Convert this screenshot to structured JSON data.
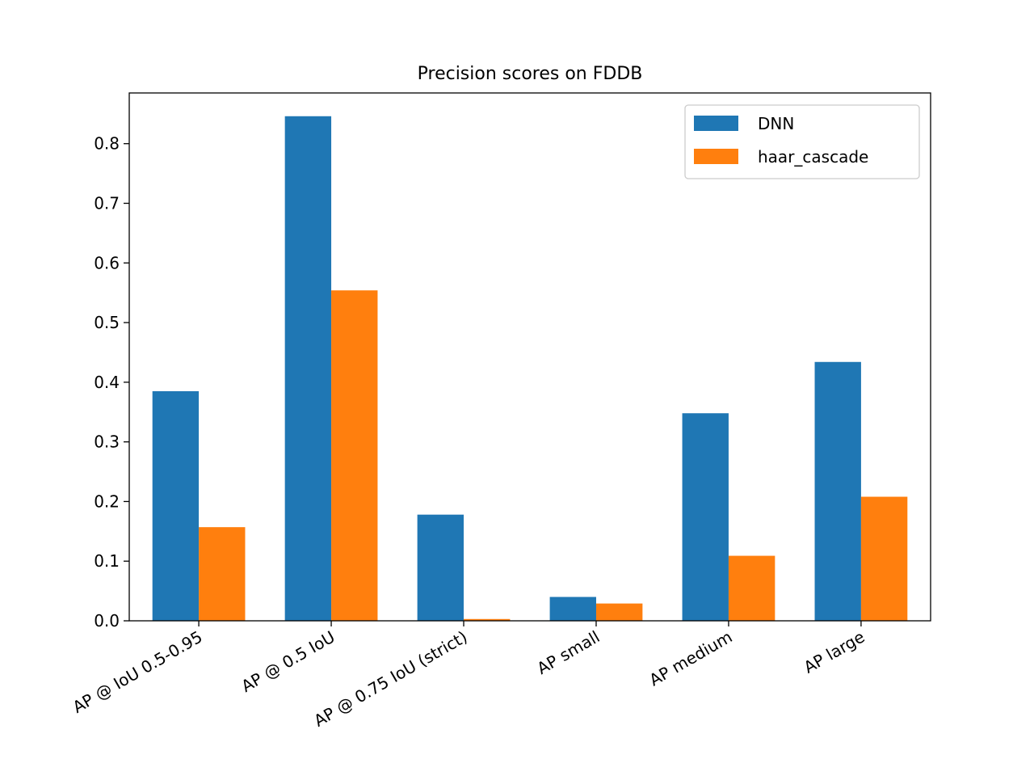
{
  "chart_data": {
    "type": "bar",
    "title": "Precision scores on FDDB",
    "xlabel": "",
    "ylabel": "",
    "categories": [
      "AP @ IoU 0.5-0.95",
      "AP @ 0.5 IoU",
      "AP @ 0.75 IoU (strict)",
      "AP small",
      "AP medium",
      "AP large"
    ],
    "series": [
      {
        "name": "DNN",
        "color": "#1f77b4",
        "values": [
          0.385,
          0.846,
          0.178,
          0.04,
          0.348,
          0.434
        ]
      },
      {
        "name": "haar_cascade",
        "color": "#ff7f0e",
        "values": [
          0.157,
          0.554,
          0.003,
          0.029,
          0.109,
          0.208
        ]
      }
    ],
    "ylim": [
      0,
      0.885
    ],
    "yticks": [
      "0.0",
      "0.1",
      "0.2",
      "0.3",
      "0.4",
      "0.5",
      "0.6",
      "0.7",
      "0.8"
    ],
    "legend_position": "top-right",
    "grid": false
  }
}
